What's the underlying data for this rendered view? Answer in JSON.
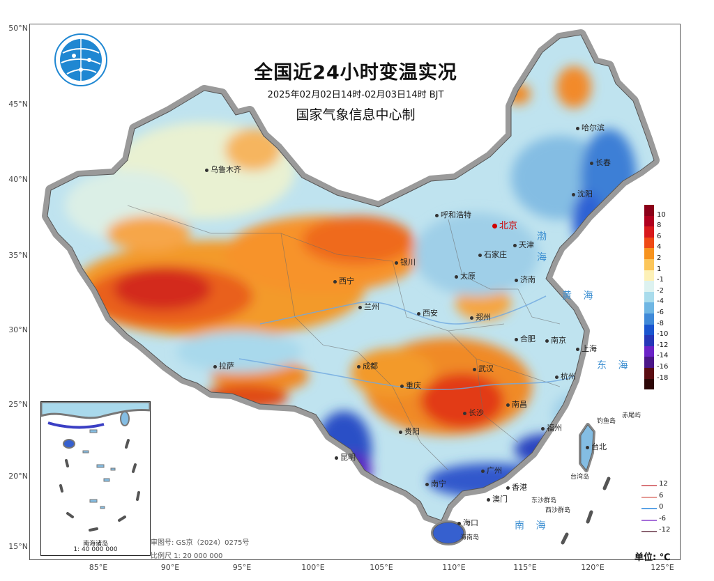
{
  "title": {
    "main": "全国近24小时变温实况",
    "period": "2025年02月02日14时-02月03日14时 BJT",
    "org": "国家气象信息中心制"
  },
  "axes": {
    "lat_ticks": [
      "50°N",
      "45°N",
      "40°N",
      "35°N",
      "30°N",
      "25°N",
      "20°N",
      "15°N"
    ],
    "lon_ticks": [
      "85°E",
      "90°E",
      "95°E",
      "100°E",
      "105°E",
      "110°E",
      "115°E",
      "120°E",
      "125°E"
    ]
  },
  "cities": [
    {
      "name": "哈尔滨"
    },
    {
      "name": "长春"
    },
    {
      "name": "沈阳"
    },
    {
      "name": "乌鲁木齐"
    },
    {
      "name": "呼和浩特"
    },
    {
      "name": "北京",
      "capital": true
    },
    {
      "name": "天津"
    },
    {
      "name": "石家庄"
    },
    {
      "name": "银川"
    },
    {
      "name": "太原"
    },
    {
      "name": "济南"
    },
    {
      "name": "西宁"
    },
    {
      "name": "兰州"
    },
    {
      "name": "郑州"
    },
    {
      "name": "西安"
    },
    {
      "name": "合肥"
    },
    {
      "name": "南京"
    },
    {
      "name": "上海"
    },
    {
      "name": "成都"
    },
    {
      "name": "武汉"
    },
    {
      "name": "杭州"
    },
    {
      "name": "拉萨"
    },
    {
      "name": "重庆"
    },
    {
      "name": "南昌"
    },
    {
      "name": "长沙"
    },
    {
      "name": "贵阳"
    },
    {
      "name": "福州"
    },
    {
      "name": "台北"
    },
    {
      "name": "昆明"
    },
    {
      "name": "广州"
    },
    {
      "name": "南宁"
    },
    {
      "name": "香港"
    },
    {
      "name": "澳门"
    },
    {
      "name": "海口"
    }
  ],
  "seas": {
    "bohai": "渤 海",
    "huanghai": "黄 海",
    "donghai": "东 海",
    "nanhai": "南 海",
    "chiwei": "赤尾屿",
    "diaoyu": "钓鱼岛",
    "dongsha": "东沙群岛",
    "xisha": "西沙群岛",
    "hainan": "海南岛",
    "taiwan": "台湾岛"
  },
  "legend": {
    "labels": [
      "10",
      "8",
      "6",
      "4",
      "2",
      "1",
      "-1",
      "-2",
      "-4",
      "-6",
      "-8",
      "-10",
      "-12",
      "-14",
      "-16",
      "-18"
    ],
    "colors": [
      "#8b0018",
      "#b0001e",
      "#d8191c",
      "#ef4a15",
      "#f7931e",
      "#fcc65a",
      "#fdf1b8",
      "#ddf2f0",
      "#a9dcec",
      "#6fb6e3",
      "#3f89d8",
      "#1a55cf",
      "#2636b8",
      "#6b23c7",
      "#4b1688",
      "#5a0c12",
      "#2d0707"
    ],
    "unit": "单位: ℃"
  },
  "isolines": [
    {
      "value": "12",
      "color": "#d9777b"
    },
    {
      "value": "6",
      "color": "#e59b95"
    },
    {
      "value": "0",
      "color": "#5ba3e6"
    },
    {
      "value": "-6",
      "color": "#a66fd9"
    },
    {
      "value": "-12",
      "color": "#8c6673"
    }
  ],
  "footnotes": {
    "review": "审图号: GS京（2024）0275号",
    "scale": "比例尺 1: 20 000 000"
  },
  "inset": {
    "title": "南海诸岛",
    "scale": "1: 40 000 000"
  },
  "colors": {
    "warm": "#ef6a1a",
    "hot": "#d4221c",
    "cold": "#2f62d4",
    "cool": "#a9d9ec",
    "neutral": "#f3f1c8"
  }
}
